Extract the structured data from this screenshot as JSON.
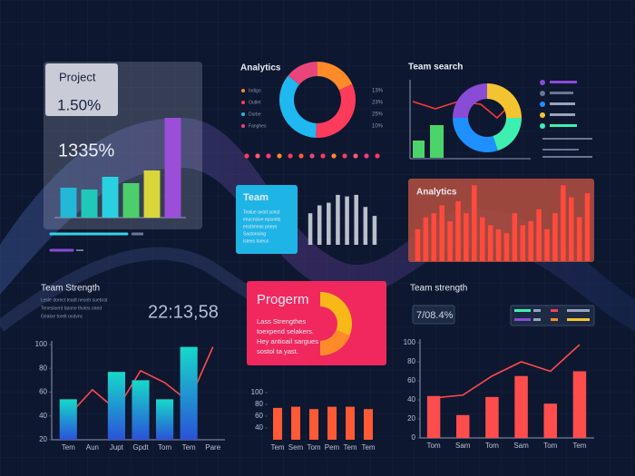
{
  "project": {
    "label": "Project",
    "value": "1.50%",
    "total": "1335%"
  },
  "team_card": {
    "title": "Team",
    "lines": [
      "Tealue avod sonst",
      "enucnsive epsonts",
      "enstimeas poeys",
      "Sastonoing",
      "istees torecs"
    ]
  },
  "team_strength": {
    "title": "Team Strength",
    "time": "22:13,58",
    "lines": [
      "Lesle dorect teadt neontr suebrat",
      "Tenesloent tarone tholes oned",
      "Gealoe torelt ondvnc"
    ]
  },
  "progerm": {
    "title": "Progerm",
    "lines": [
      "Lass Strengthes",
      "toexpend selakers.",
      "Hey antioail sargues",
      "sostol ta yast."
    ]
  },
  "team_strength_right": {
    "title": "Team strength",
    "stat": "7/08.4%"
  },
  "chart_data": [
    {
      "type": "bar",
      "categories": [
        null,
        null,
        null,
        null,
        null,
        null
      ],
      "values": [
        33,
        31,
        45,
        38,
        52,
        110
      ],
      "colors": [
        "#22b8d6",
        "#1fc8b8",
        "#2ad0e0",
        "#4ccf6a",
        "#d8d63a",
        "#9b4fd8"
      ],
      "ylim": [
        0,
        115
      ]
    },
    {
      "type": "pie",
      "title": "Analytics",
      "categories": [
        "Indigo",
        "Outlet",
        "Durbe",
        "Fanghes"
      ],
      "values": [
        13,
        23,
        25,
        10
      ],
      "value_labels": [
        "13%",
        "23%",
        "25%",
        "10%"
      ],
      "colors": [
        "#ff8a2a",
        "#ff3b5c",
        "#1fb8f0",
        "#e8467a"
      ]
    },
    {
      "type": "pie",
      "title": "Team search",
      "values": [
        25,
        20,
        30,
        25
      ],
      "colors": [
        "#f4c430",
        "#3ef0b0",
        "#1e90ff",
        "#8a4bd6"
      ]
    },
    {
      "type": "bar",
      "categories": [
        null,
        null,
        null,
        null,
        null,
        null,
        null,
        null
      ],
      "values": [
        60,
        75,
        80,
        95,
        92,
        95,
        72,
        55
      ],
      "color": "#b9bfcc",
      "ylim": [
        0,
        100
      ]
    },
    {
      "type": "bar",
      "title": "Analytics",
      "categories": [
        null,
        null,
        null,
        null,
        null,
        null,
        null,
        null,
        null,
        null,
        null,
        null,
        null,
        null,
        null,
        null,
        null,
        null,
        null,
        null,
        null,
        null
      ],
      "values": [
        40,
        55,
        60,
        70,
        50,
        75,
        60,
        95,
        55,
        45,
        40,
        35,
        60,
        45,
        50,
        65,
        40,
        60,
        95,
        80,
        55,
        85
      ],
      "color": "#ff4a3d",
      "ylim": [
        0,
        100
      ]
    },
    {
      "type": "combo",
      "categories": [
        "Tem",
        "Aun",
        "Jupt",
        "Gpdt",
        "Tom",
        "Tem",
        "Pare"
      ],
      "ylim": [
        20,
        100
      ],
      "yticks": [
        20,
        40,
        60,
        80,
        100
      ],
      "series": [
        {
          "type": "line",
          "color": "#ff4a4a",
          "values": [
            40,
            62,
            45,
            78,
            68,
            52,
            98
          ]
        },
        {
          "type": "bar",
          "colors": [
            "#17d9c9",
            "#2a52d8"
          ],
          "values": [
            54,
            null,
            77,
            70,
            54,
            98,
            null
          ]
        }
      ]
    },
    {
      "type": "combo",
      "categories": [
        "Tem",
        "Sem",
        "Tom",
        "Pem",
        "Tem",
        "Tem"
      ],
      "ylim": [
        20,
        100
      ],
      "yticks": [
        40,
        60,
        80,
        100
      ],
      "series": [
        {
          "type": "bar",
          "colors": [
            "#ff5a36",
            "#ff5a36"
          ],
          "values": [
            74,
            76,
            72,
            76,
            76,
            72
          ]
        }
      ]
    },
    {
      "type": "combo",
      "categories": [
        "Tom",
        "Sam",
        "Tom",
        "Sam",
        "Tom",
        "Tem"
      ],
      "ylim": [
        0,
        100
      ],
      "yticks": [
        0,
        20,
        40,
        60,
        80,
        100
      ],
      "series": [
        {
          "type": "line",
          "color": "#ff4a4a",
          "values": [
            42,
            45,
            65,
            80,
            70,
            98
          ]
        },
        {
          "type": "bar",
          "colors": [
            "#ff4d4d",
            "#ff4d4d"
          ],
          "values": [
            44,
            24,
            43,
            65,
            36,
            70
          ]
        }
      ]
    }
  ]
}
